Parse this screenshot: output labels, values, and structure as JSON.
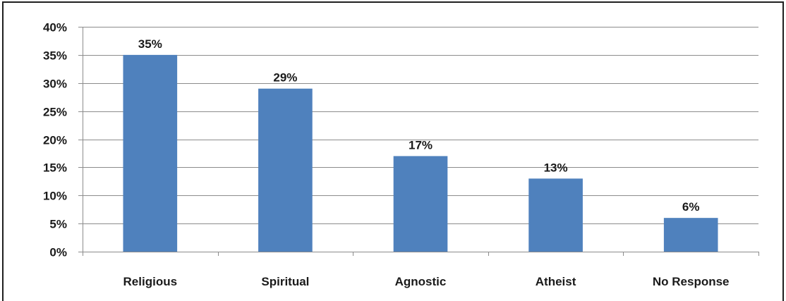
{
  "chart_data": {
    "type": "bar",
    "title": "",
    "xlabel": "",
    "ylabel": "",
    "categories": [
      "Religious",
      "Spiritual",
      "Agnostic",
      "Atheist",
      "No Response"
    ],
    "values": [
      35,
      29,
      17,
      13,
      6
    ],
    "data_labels": [
      "35%",
      "29%",
      "17%",
      "13%",
      "6%"
    ],
    "ylim": [
      0,
      40
    ],
    "yticks": [
      0,
      5,
      10,
      15,
      20,
      25,
      30,
      35,
      40
    ],
    "ytick_labels": [
      "0%",
      "5%",
      "10%",
      "15%",
      "20%",
      "25%",
      "30%",
      "35%",
      "40%"
    ],
    "grid": true,
    "legend": "none",
    "bar_color": "#4f81bd"
  }
}
